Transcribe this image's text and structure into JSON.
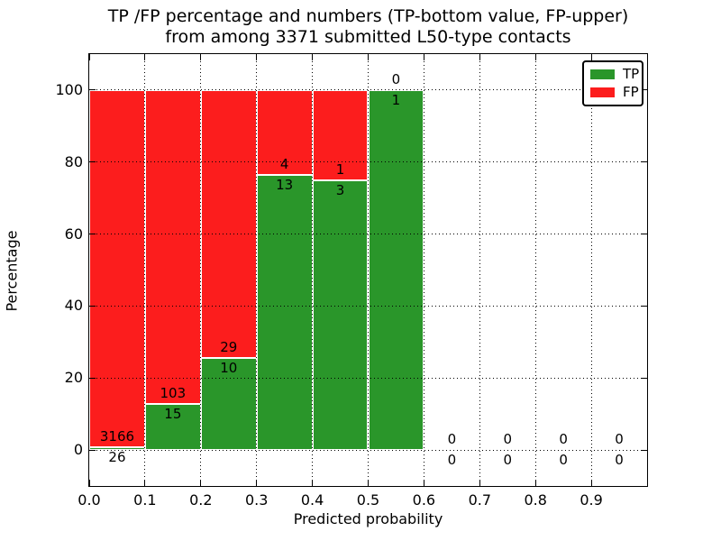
{
  "figure": {
    "title_line1": "TP /FP percentage and numbers (TP-bottom value, FP-upper)",
    "title_line2": "from among 3371 submitted L50-type contacts",
    "background_color": "#ffffff"
  },
  "legend": {
    "items": [
      {
        "label": "TP",
        "color": "#2a962a"
      },
      {
        "label": "FP",
        "color": "#fc1d1d"
      }
    ]
  },
  "chart_data": {
    "type": "bar",
    "stacked": true,
    "title": "TP /FP percentage and numbers (TP-bottom value, FP-upper)\nfrom among 3371 submitted L50-type contacts",
    "xlabel": "Predicted probability",
    "ylabel": "Percentage",
    "total_contacts": 3371,
    "xlim": [
      0.0,
      1.0
    ],
    "ylim": [
      -10,
      110
    ],
    "x_tick_labels": [
      "0.0",
      "0.1",
      "0.2",
      "0.3",
      "0.4",
      "0.5",
      "0.6",
      "0.7",
      "0.8",
      "0.9"
    ],
    "x_tick_values": [
      0.0,
      0.1,
      0.2,
      0.3,
      0.4,
      0.5,
      0.6,
      0.7,
      0.8,
      0.9
    ],
    "y_tick_values": [
      0,
      20,
      40,
      60,
      80,
      100
    ],
    "grid": "dotted-black-both-axes",
    "legend_position": "upper-right",
    "series": [
      {
        "name": "TP",
        "color": "#2a962a",
        "position": "bottom"
      },
      {
        "name": "FP",
        "color": "#fc1d1d",
        "position": "top"
      }
    ],
    "bins": [
      {
        "range": [
          0.0,
          0.1
        ],
        "tp_count": 26,
        "fp_count": 3166,
        "tp_pct": 0.81,
        "fp_pct": 99.19
      },
      {
        "range": [
          0.1,
          0.2
        ],
        "tp_count": 15,
        "fp_count": 103,
        "tp_pct": 12.71,
        "fp_pct": 87.29
      },
      {
        "range": [
          0.2,
          0.3
        ],
        "tp_count": 10,
        "fp_count": 29,
        "tp_pct": 25.64,
        "fp_pct": 74.36
      },
      {
        "range": [
          0.3,
          0.4
        ],
        "tp_count": 13,
        "fp_count": 4,
        "tp_pct": 76.47,
        "fp_pct": 23.53
      },
      {
        "range": [
          0.4,
          0.5
        ],
        "tp_count": 3,
        "fp_count": 1,
        "tp_pct": 75.0,
        "fp_pct": 25.0
      },
      {
        "range": [
          0.5,
          0.6
        ],
        "tp_count": 1,
        "fp_count": 0,
        "tp_pct": 100.0,
        "fp_pct": 0.0
      },
      {
        "range": [
          0.6,
          0.7
        ],
        "tp_count": 0,
        "fp_count": 0,
        "tp_pct": 0.0,
        "fp_pct": 0.0
      },
      {
        "range": [
          0.7,
          0.8
        ],
        "tp_count": 0,
        "fp_count": 0,
        "tp_pct": 0.0,
        "fp_pct": 0.0
      },
      {
        "range": [
          0.8,
          0.9
        ],
        "tp_count": 0,
        "fp_count": 0,
        "tp_pct": 0.0,
        "fp_pct": 0.0
      },
      {
        "range": [
          0.9,
          1.0
        ],
        "tp_count": 0,
        "fp_count": 0,
        "tp_pct": 0.0,
        "fp_pct": 0.0
      }
    ]
  }
}
